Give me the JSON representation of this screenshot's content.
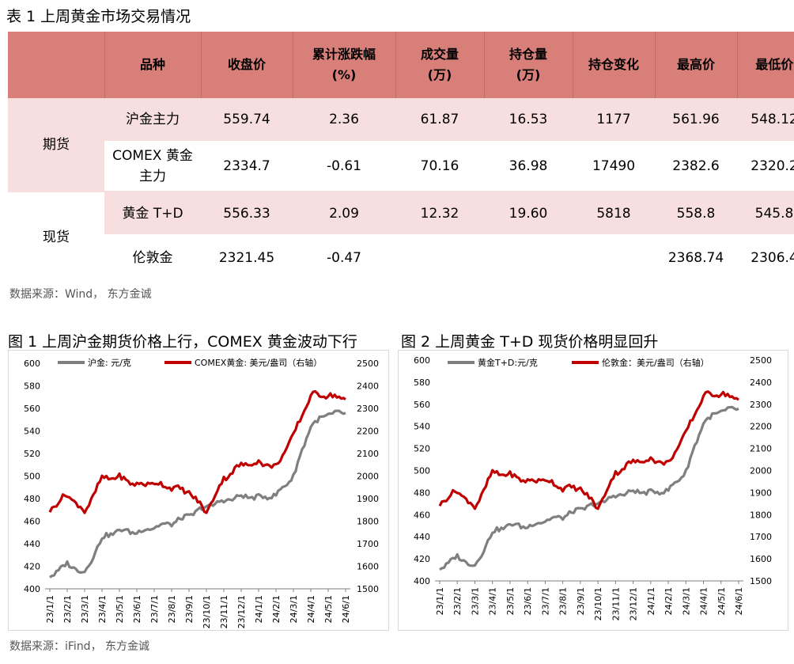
{
  "table": {
    "title": "表 1  上周黄金市场交易情况",
    "headers": [
      "",
      "品种",
      "收盘价",
      "累计涨跌幅\n(%)",
      "成交量\n(万)",
      "持仓量\n(万)",
      "持仓变化",
      "最高价",
      "最低价"
    ],
    "groups": [
      "期货",
      "现货"
    ],
    "rows": [
      [
        "沪金主力",
        "559.74",
        "2.36",
        "61.87",
        "16.53",
        "1177",
        "561.96",
        "548.12"
      ],
      [
        "COMEX 黄金\n主力",
        "2334.7",
        "-0.61",
        "70.16",
        "36.98",
        "17490",
        "2382.6",
        "2320.2"
      ],
      [
        "黄金 T+D",
        "556.33",
        "2.09",
        "12.32",
        "19.60",
        "5818",
        "558.8",
        "545.8"
      ],
      [
        "伦敦金",
        "2321.45",
        "-0.47",
        "",
        "",
        "",
        "2368.74",
        "2306.4"
      ]
    ],
    "source": "数据来源：Wind，  东方金诚"
  },
  "figures": {
    "fig1_title": "图 1  上周沪金期货价格上行，COMEX 黄金波动下行",
    "fig2_title": "图 2  上周黄金 T+D 现货价格明显回升",
    "source": "数据来源：iFind，  东方金诚"
  },
  "colors": {
    "grey_series": "#7f7f7f",
    "red_series": "#c00000",
    "header_bg": "#d97f7a",
    "row_pink": "#f6dfde"
  },
  "chart_data": [
    {
      "type": "line",
      "x": [
        "23/1/1",
        "23/2/1",
        "23/3/1",
        "23/4/1",
        "23/5/1",
        "23/6/1",
        "23/7/1",
        "23/8/1",
        "23/9/1",
        "23/10/1",
        "23/11/1",
        "23/12/1",
        "24/1/1",
        "24/2/1",
        "24/3/1",
        "24/4/1",
        "24/5/1",
        "24/6/1"
      ],
      "series": [
        {
          "name": "沪金: 元/克",
          "axis": "left",
          "color": "#7f7f7f",
          "values": [
            411,
            422,
            414,
            445,
            452,
            450,
            455,
            458,
            465,
            473,
            478,
            482,
            481,
            483,
            500,
            545,
            555,
            556
          ]
        },
        {
          "name": "COMEX黄金: 美元/盎司（右轴）",
          "axis": "right",
          "color": "#c00000",
          "values": [
            1850,
            1920,
            1840,
            1990,
            1995,
            1960,
            1970,
            1950,
            1930,
            1840,
            1990,
            2050,
            2060,
            2040,
            2180,
            2360,
            2360,
            2340
          ]
        }
      ],
      "left_axis": {
        "min": 400,
        "max": 600,
        "ticks": [
          400,
          420,
          440,
          460,
          480,
          500,
          520,
          540,
          560,
          580,
          600
        ]
      },
      "right_axis": {
        "min": 1500,
        "max": 2500,
        "ticks": [
          1500,
          1600,
          1700,
          1800,
          1900,
          2000,
          2100,
          2200,
          2300,
          2400,
          2500
        ]
      },
      "legend": "top"
    },
    {
      "type": "line",
      "x": [
        "23/1/1",
        "23/2/1",
        "23/3/1",
        "23/4/1",
        "23/5/1",
        "23/6/1",
        "23/7/1",
        "23/8/1",
        "23/9/1",
        "23/10/1",
        "23/11/1",
        "23/12/1",
        "24/1/1",
        "24/2/1",
        "24/3/1",
        "24/4/1",
        "24/5/1",
        "24/6/1"
      ],
      "series": [
        {
          "name": "黄金T+D:元/克",
          "axis": "left",
          "color": "#7f7f7f",
          "values": [
            411,
            422,
            413,
            444,
            451,
            449,
            455,
            458,
            465,
            470,
            477,
            481,
            480,
            482,
            499,
            544,
            554,
            556
          ]
        },
        {
          "name": "伦敦金：美元/盎司（右轴）",
          "axis": "right",
          "color": "#c00000",
          "values": [
            1850,
            1910,
            1830,
            1990,
            1980,
            1950,
            1960,
            1920,
            1920,
            1830,
            1990,
            2040,
            2050,
            2030,
            2170,
            2340,
            2350,
            2320
          ]
        }
      ],
      "left_axis": {
        "min": 400,
        "max": 600,
        "ticks": [
          400,
          420,
          440,
          460,
          480,
          500,
          520,
          540,
          560,
          580,
          600
        ]
      },
      "right_axis": {
        "min": 1500,
        "max": 2500,
        "ticks": [
          1500,
          1600,
          1700,
          1800,
          1900,
          2000,
          2100,
          2200,
          2300,
          2400,
          2500
        ]
      },
      "legend": "top"
    }
  ]
}
